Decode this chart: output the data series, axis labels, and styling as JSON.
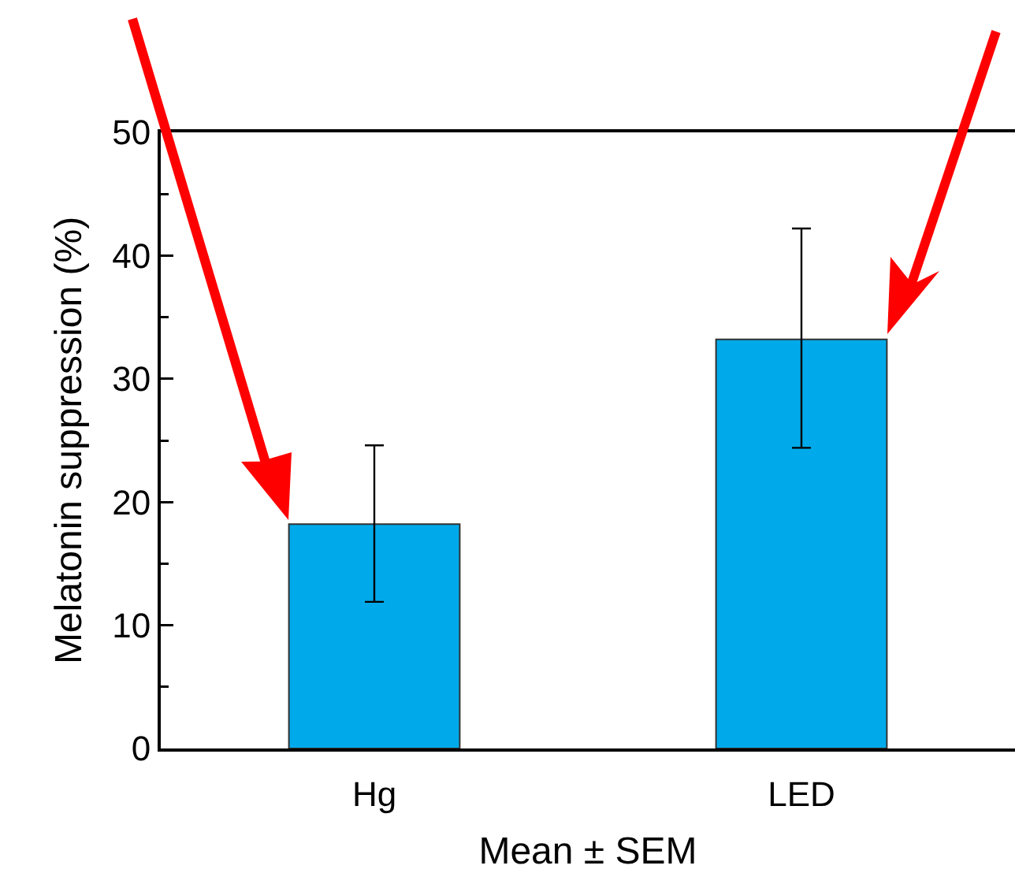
{
  "chart_data": {
    "type": "bar",
    "categories": [
      "Hg",
      "LED"
    ],
    "values": [
      18.2,
      33.2
    ],
    "color": "#00aaea",
    "errors": [
      [
        11.9,
        24.6
      ],
      [
        24.4,
        42.2
      ]
    ],
    "xlabel": "Mean ± SEM",
    "ylabel": "Melatonin suppression (%)",
    "ylim": [
      0,
      50
    ],
    "yticks": [
      0,
      10,
      20,
      30,
      40,
      50
    ],
    "grid": false,
    "legend": false
  }
}
